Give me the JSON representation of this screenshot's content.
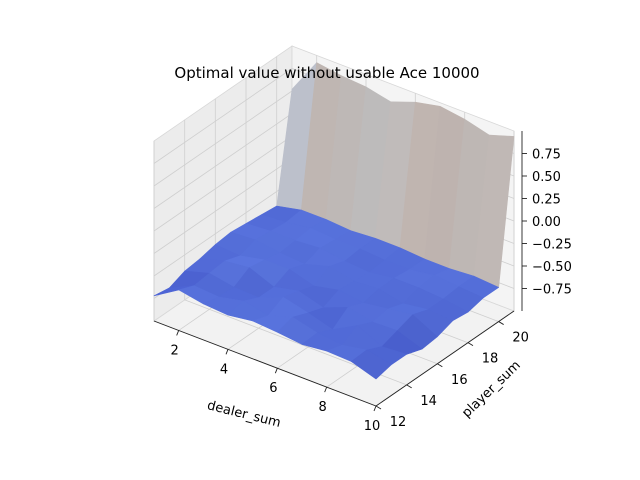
{
  "chart_data": {
    "type": "surface",
    "title": "Optimal value without usable Ace 10000",
    "xlabel": "dealer_sum",
    "ylabel": "player_sum",
    "zlabel": "",
    "colormap": "coolwarm",
    "colormap_colors": [
      "#3b4cc0",
      "#6f92f3",
      "#aac7fd",
      "#dddcdc",
      "#f7b89c",
      "#e7745b",
      "#b40426"
    ],
    "x_ticks": [
      "2",
      "4",
      "6",
      "8",
      "10"
    ],
    "y_ticks": [
      "12",
      "14",
      "16",
      "18",
      "20"
    ],
    "z_ticks": [
      "−0.75",
      "−0.50",
      "−0.25",
      "0.00",
      "0.25",
      "0.50",
      "0.75"
    ],
    "xlim": [
      1,
      10
    ],
    "ylim": [
      12,
      21
    ],
    "zlim": [
      -1,
      1
    ],
    "grid": true,
    "x": [
      1,
      2,
      3,
      4,
      5,
      6,
      7,
      8,
      9,
      10
    ],
    "y": [
      12,
      13,
      14,
      15,
      16,
      17,
      18,
      19,
      20,
      21
    ],
    "z": [
      [
        -0.72,
        -0.55,
        -0.6,
        -0.62,
        -0.58,
        -0.6,
        -0.63,
        -0.6,
        -0.61,
        -0.7
      ],
      [
        -0.75,
        -0.62,
        -0.64,
        -0.58,
        -0.64,
        -0.55,
        -0.62,
        -0.65,
        -0.6,
        -0.66
      ],
      [
        -0.68,
        -0.6,
        -0.65,
        -0.66,
        -0.55,
        -0.62,
        -0.7,
        -0.55,
        -0.68,
        -0.66
      ],
      [
        -0.66,
        -0.58,
        -0.55,
        -0.66,
        -0.6,
        -0.68,
        -0.57,
        -0.63,
        -0.62,
        -0.72
      ],
      [
        -0.62,
        -0.64,
        -0.58,
        -0.58,
        -0.66,
        -0.6,
        -0.64,
        -0.6,
        -0.56,
        -0.7
      ],
      [
        -0.6,
        -0.58,
        -0.62,
        -0.64,
        -0.56,
        -0.62,
        -0.6,
        -0.66,
        -0.62,
        -0.64
      ],
      [
        -0.62,
        -0.6,
        -0.6,
        -0.58,
        -0.62,
        -0.64,
        -0.6,
        -0.6,
        -0.62,
        -0.66
      ],
      [
        -0.64,
        -0.62,
        -0.58,
        -0.6,
        -0.6,
        -0.62,
        -0.62,
        -0.58,
        -0.6,
        -0.62
      ],
      [
        -0.66,
        -0.6,
        -0.6,
        -0.62,
        -0.6,
        -0.6,
        -0.62,
        -0.62,
        -0.6,
        -0.62
      ],
      [
        0.52,
        0.92,
        0.88,
        0.86,
        0.8,
        0.9,
        0.96,
        0.92,
        0.85,
        0.94
      ]
    ]
  }
}
